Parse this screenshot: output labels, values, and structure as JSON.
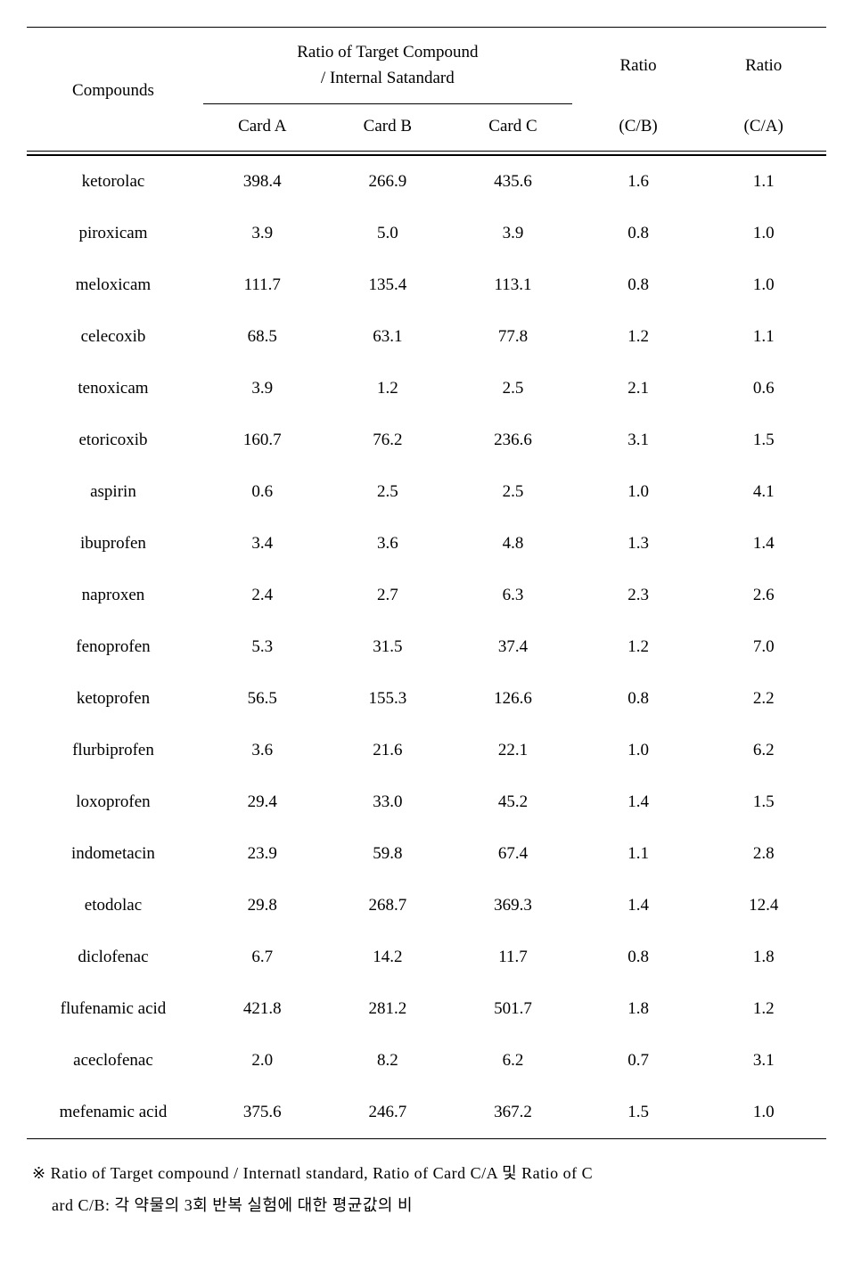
{
  "table": {
    "type": "table",
    "headers": {
      "compounds": "Compounds",
      "spanner_line1": "Ratio of Target Compound",
      "spanner_line2": "/ Internal Satandard",
      "cardA": "Card A",
      "cardB": "Card B",
      "cardC": "Card C",
      "ratio1_top": "Ratio",
      "ratio1_bottom": "(C/B)",
      "ratio2_top": "Ratio",
      "ratio2_bottom": "(C/A)"
    },
    "rows": [
      {
        "compound": "ketorolac",
        "cardA": "398.4",
        "cardB": "266.9",
        "cardC": "435.6",
        "rCB": "1.6",
        "rCA": "1.1"
      },
      {
        "compound": "piroxicam",
        "cardA": "3.9",
        "cardB": "5.0",
        "cardC": "3.9",
        "rCB": "0.8",
        "rCA": "1.0"
      },
      {
        "compound": "meloxicam",
        "cardA": "111.7",
        "cardB": "135.4",
        "cardC": "113.1",
        "rCB": "0.8",
        "rCA": "1.0"
      },
      {
        "compound": "celecoxib",
        "cardA": "68.5",
        "cardB": "63.1",
        "cardC": "77.8",
        "rCB": "1.2",
        "rCA": "1.1"
      },
      {
        "compound": "tenoxicam",
        "cardA": "3.9",
        "cardB": "1.2",
        "cardC": "2.5",
        "rCB": "2.1",
        "rCA": "0.6"
      },
      {
        "compound": "etoricoxib",
        "cardA": "160.7",
        "cardB": "76.2",
        "cardC": "236.6",
        "rCB": "3.1",
        "rCA": "1.5"
      },
      {
        "compound": "aspirin",
        "cardA": "0.6",
        "cardB": "2.5",
        "cardC": "2.5",
        "rCB": "1.0",
        "rCA": "4.1"
      },
      {
        "compound": "ibuprofen",
        "cardA": "3.4",
        "cardB": "3.6",
        "cardC": "4.8",
        "rCB": "1.3",
        "rCA": "1.4"
      },
      {
        "compound": "naproxen",
        "cardA": "2.4",
        "cardB": "2.7",
        "cardC": "6.3",
        "rCB": "2.3",
        "rCA": "2.6"
      },
      {
        "compound": "fenoprofen",
        "cardA": "5.3",
        "cardB": "31.5",
        "cardC": "37.4",
        "rCB": "1.2",
        "rCA": "7.0"
      },
      {
        "compound": "ketoprofen",
        "cardA": "56.5",
        "cardB": "155.3",
        "cardC": "126.6",
        "rCB": "0.8",
        "rCA": "2.2"
      },
      {
        "compound": "flurbiprofen",
        "cardA": "3.6",
        "cardB": "21.6",
        "cardC": "22.1",
        "rCB": "1.0",
        "rCA": "6.2"
      },
      {
        "compound": "loxoprofen",
        "cardA": "29.4",
        "cardB": "33.0",
        "cardC": "45.2",
        "rCB": "1.4",
        "rCA": "1.5"
      },
      {
        "compound": "indometacin",
        "cardA": "23.9",
        "cardB": "59.8",
        "cardC": "67.4",
        "rCB": "1.1",
        "rCA": "2.8"
      },
      {
        "compound": "etodolac",
        "cardA": "29.8",
        "cardB": "268.7",
        "cardC": "369.3",
        "rCB": "1.4",
        "rCA": "12.4"
      },
      {
        "compound": "diclofenac",
        "cardA": "6.7",
        "cardB": "14.2",
        "cardC": "11.7",
        "rCB": "0.8",
        "rCA": "1.8"
      },
      {
        "compound": "flufenamic acid",
        "cardA": "421.8",
        "cardB": "281.2",
        "cardC": "501.7",
        "rCB": "1.8",
        "rCA": "1.2"
      },
      {
        "compound": "aceclofenac",
        "cardA": "2.0",
        "cardB": "8.2",
        "cardC": "6.2",
        "rCB": "0.7",
        "rCA": "3.1"
      },
      {
        "compound": "mefenamic acid",
        "cardA": "375.6",
        "cardB": "246.7",
        "cardC": "367.2",
        "rCB": "1.5",
        "rCA": "1.0"
      }
    ],
    "column_widths_pct": [
      20,
      14.5,
      14.5,
      14.5,
      14.5,
      14.5
    ],
    "body_fontsize": 19,
    "header_fontsize": 19,
    "footnote_fontsize": 18,
    "border_color": "#000000",
    "background_color": "#ffffff",
    "text_color": "#000000",
    "row_padding_v": 18
  },
  "footnote": {
    "marker": "※",
    "line1": "Ratio of Target compound / Internatl standard, Ratio of Card C/A 및 Ratio of C",
    "line2": "ard C/B: 각 약물의 3회 반복 실험에 대한 평균값의 비"
  }
}
